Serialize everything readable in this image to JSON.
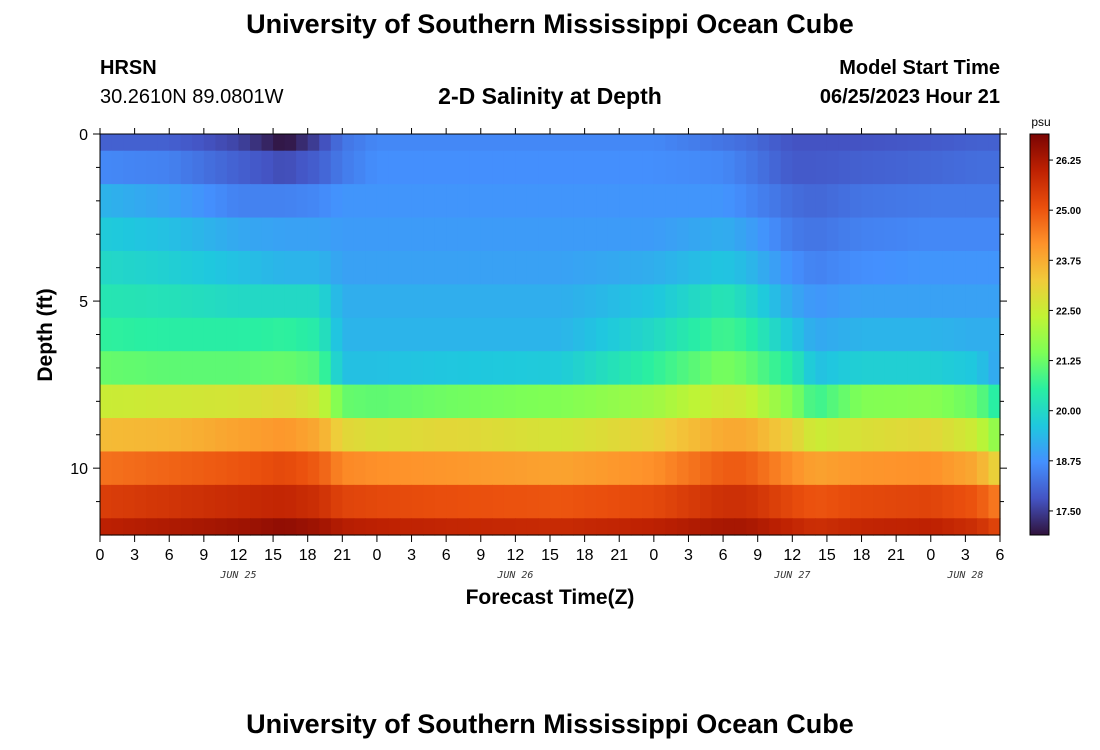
{
  "header": {
    "title": "University of Southern Mississippi Ocean Cube",
    "station": "HRSN",
    "coordinates": "30.2610N  89.0801W",
    "subtitle": "2-D Salinity at Depth",
    "model_start_label": "Model Start Time",
    "model_start_value": "06/25/2023 Hour 21"
  },
  "footer": {
    "title": "University of Southern Mississippi Ocean Cube"
  },
  "chart_data": {
    "type": "heatmap",
    "xlabel": "Forecast Time(Z)",
    "ylabel": "Depth (ft)",
    "xlim": [
      0,
      78
    ],
    "ylim": [
      12,
      0
    ],
    "x_step_hours": 1,
    "x_tick_hours": [
      0,
      3,
      6,
      9,
      12,
      15,
      18,
      21,
      24,
      27,
      30,
      33,
      36,
      39,
      42,
      45,
      48,
      51,
      54,
      57,
      60,
      63,
      66,
      69,
      72,
      75,
      78
    ],
    "x_tick_labels": [
      "0",
      "3",
      "6",
      "9",
      "12",
      "15",
      "18",
      "21",
      "0",
      "3",
      "6",
      "9",
      "12",
      "15",
      "18",
      "21",
      "0",
      "3",
      "6",
      "9",
      "12",
      "15",
      "18",
      "21",
      "0",
      "3",
      "6"
    ],
    "day_labels": [
      {
        "hour": 12,
        "label": "JUN 25"
      },
      {
        "hour": 36,
        "label": "JUN 26"
      },
      {
        "hour": 60,
        "label": "JUN 27"
      },
      {
        "hour": 75,
        "label": "JUN 28"
      }
    ],
    "y_ticks": [
      0,
      5,
      10
    ],
    "y_tick_labels": [
      "0",
      "5",
      "10"
    ],
    "y_minor_ticks": [
      1,
      2,
      3,
      4,
      6,
      7,
      8,
      9,
      11
    ],
    "depth_rows": [
      {
        "top": 0,
        "bottom": 0.5
      },
      {
        "top": 0.5,
        "bottom": 1.5
      },
      {
        "top": 1.5,
        "bottom": 2.5
      },
      {
        "top": 2.5,
        "bottom": 3.5
      },
      {
        "top": 3.5,
        "bottom": 4.5
      },
      {
        "top": 4.5,
        "bottom": 5.5
      },
      {
        "top": 5.5,
        "bottom": 6.5
      },
      {
        "top": 6.5,
        "bottom": 7.5
      },
      {
        "top": 7.5,
        "bottom": 8.5
      },
      {
        "top": 8.5,
        "bottom": 9.5
      },
      {
        "top": 9.5,
        "bottom": 10.5
      },
      {
        "top": 10.5,
        "bottom": 11.5
      },
      {
        "top": 11.5,
        "bottom": 12
      }
    ],
    "time_keypoints": [
      0,
      6,
      12,
      16,
      19,
      21,
      24,
      30,
      40,
      48,
      54,
      56,
      60,
      62,
      66,
      72,
      76,
      78
    ],
    "salinity_psu": [
      [
        18.0,
        18.0,
        17.6,
        16.9,
        17.6,
        18.3,
        18.6,
        18.6,
        18.6,
        18.6,
        18.3,
        18.2,
        17.8,
        17.8,
        17.8,
        17.9,
        18.0,
        18.0
      ],
      [
        18.6,
        18.5,
        18.0,
        17.7,
        18.0,
        18.4,
        18.7,
        18.7,
        18.7,
        18.7,
        18.6,
        18.4,
        17.9,
        17.9,
        18.0,
        18.1,
        18.2,
        18.2
      ],
      [
        19.3,
        19.0,
        18.5,
        18.5,
        18.6,
        18.8,
        18.8,
        18.8,
        18.8,
        18.8,
        18.8,
        18.6,
        18.2,
        18.1,
        18.3,
        18.4,
        18.4,
        18.4
      ],
      [
        19.7,
        19.5,
        19.1,
        19.0,
        19.0,
        18.9,
        18.9,
        18.9,
        18.9,
        18.9,
        19.2,
        19.0,
        18.4,
        18.3,
        18.5,
        18.6,
        18.6,
        18.6
      ],
      [
        20.0,
        19.8,
        19.5,
        19.3,
        19.3,
        19.0,
        19.0,
        19.0,
        19.0,
        19.2,
        19.6,
        19.4,
        18.7,
        18.5,
        18.7,
        18.8,
        18.8,
        18.8
      ],
      [
        20.3,
        20.2,
        20.0,
        20.0,
        20.0,
        19.2,
        19.2,
        19.2,
        19.2,
        19.6,
        20.3,
        20.0,
        19.1,
        18.8,
        19.0,
        19.0,
        19.0,
        19.0
      ],
      [
        20.6,
        20.5,
        20.5,
        20.6,
        20.4,
        19.3,
        19.3,
        19.3,
        19.3,
        20.0,
        20.8,
        20.6,
        19.6,
        19.1,
        19.3,
        19.3,
        19.2,
        19.2
      ],
      [
        21.2,
        21.1,
        21.1,
        21.2,
        21.0,
        19.5,
        19.5,
        19.6,
        19.7,
        20.6,
        21.4,
        21.2,
        20.4,
        19.5,
        19.8,
        19.8,
        19.6,
        19.0
      ],
      [
        22.5,
        22.6,
        22.7,
        22.9,
        22.6,
        21.2,
        21.1,
        21.3,
        21.5,
        21.9,
        22.6,
        22.5,
        21.5,
        20.7,
        21.5,
        21.6,
        21.2,
        20.3
      ],
      [
        23.5,
        23.6,
        23.9,
        24.1,
        23.8,
        23.0,
        22.8,
        23.0,
        22.7,
        23.1,
        23.8,
        23.8,
        23.1,
        22.5,
        22.8,
        23.0,
        22.5,
        21.5
      ],
      [
        24.6,
        24.8,
        25.0,
        25.2,
        24.9,
        24.3,
        24.2,
        24.1,
        23.9,
        24.2,
        24.9,
        24.9,
        24.2,
        23.9,
        24.1,
        24.2,
        23.8,
        22.9
      ],
      [
        25.4,
        25.6,
        25.8,
        25.9,
        25.7,
        25.3,
        25.2,
        25.1,
        25.0,
        25.2,
        25.7,
        25.7,
        25.2,
        25.0,
        25.2,
        25.3,
        25.0,
        24.4
      ],
      [
        26.0,
        26.2,
        26.4,
        26.6,
        26.4,
        26.1,
        26.0,
        25.9,
        25.8,
        26.0,
        26.3,
        26.3,
        25.9,
        25.7,
        25.9,
        26.0,
        25.7,
        25.2
      ]
    ],
    "colorbar": {
      "unit": "psu",
      "min": 16.9,
      "max": 26.9,
      "tick_values": [
        17.5,
        18.75,
        20.0,
        21.25,
        22.5,
        23.75,
        25.0,
        26.25
      ],
      "tick_labels": [
        "17.50",
        "18.75",
        "20.00",
        "21.25",
        "22.50",
        "23.75",
        "25.00",
        "26.25"
      ],
      "palette": [
        "#30123b",
        "#4454c4",
        "#4490fe",
        "#1fc8de",
        "#29efa2",
        "#7dff56",
        "#c1f334",
        "#f1ca3a",
        "#fe922a",
        "#ea4f0d",
        "#be2102",
        "#7a0403"
      ]
    }
  }
}
